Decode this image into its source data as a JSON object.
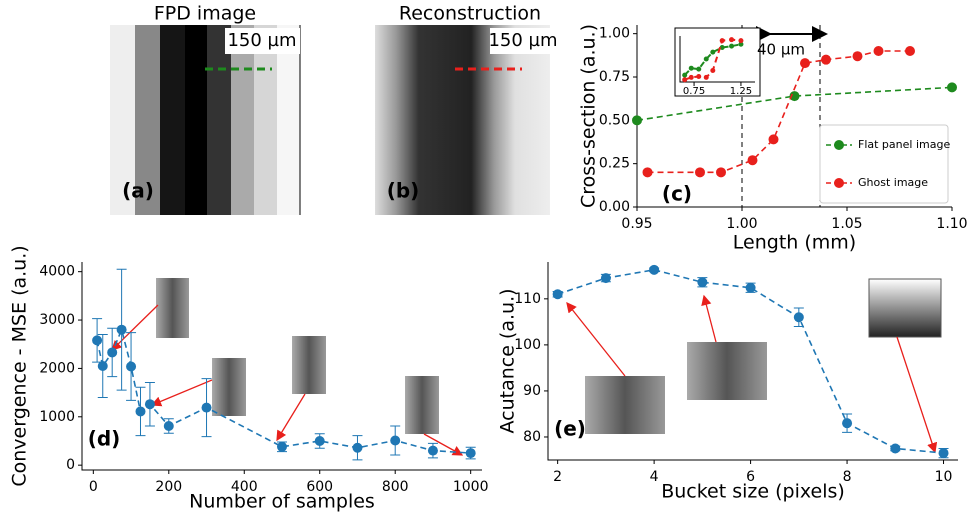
{
  "images": [
    {
      "title": "FPD image",
      "scale_label": "150 µm",
      "panel_label": "(a)"
    },
    {
      "title": "Reconstruction",
      "scale_label": "150 µm",
      "panel_label": "(b)"
    }
  ],
  "chart_data": [
    {
      "type": "line",
      "panel_label": "(c)",
      "x_label": "Length (mm)",
      "y_label": "Cross-section (a.u.)",
      "xlim": [
        0.95,
        1.1
      ],
      "ylim": [
        0,
        1.05
      ],
      "xticks": [
        0.95,
        {
          "value": 1.0,
          "label": "1.00"
        },
        1.05,
        {
          "value": 1.1,
          "label": "1.10"
        }
      ],
      "yticks": [
        {
          "value": 0,
          "label": "0.00"
        },
        0.25,
        {
          "value": 0.5,
          "label": "0.50"
        },
        0.75,
        {
          "value": 1,
          "label": "1.00"
        }
      ],
      "legend": "lower right",
      "annotation": "40 µm",
      "series": [
        {
          "name": "Flat panel image",
          "color": "#1e8a1e",
          "x": [
            0.95,
            1.025,
            1.1
          ],
          "values": [
            0.5,
            0.64,
            0.69
          ]
        },
        {
          "name": "Ghost image",
          "color": "#e8201c",
          "x": [
            0.955,
            0.98,
            0.99,
            1.005,
            1.015,
            1.03,
            1.04,
            1.055,
            1.065,
            1.08
          ],
          "values": [
            0.2,
            0.2,
            0.2,
            0.27,
            0.39,
            0.83,
            0.85,
            0.87,
            0.9,
            0.9
          ]
        }
      ]
    },
    {
      "type": "line",
      "xlim": [
        0.6,
        1.4
      ],
      "ylim": [
        0,
        1
      ],
      "xticks": [
        0.75,
        1.25
      ],
      "series": [
        {
          "color": "#1e8a1e",
          "x": [
            0.65,
            0.72,
            0.8,
            0.88,
            0.95,
            1.05,
            1.15,
            1.25
          ],
          "values": [
            0.15,
            0.3,
            0.28,
            0.5,
            0.65,
            0.75,
            0.78,
            0.82
          ]
        },
        {
          "color": "#e8201c",
          "x": [
            0.65,
            0.72,
            0.8,
            0.88,
            0.95,
            1.05,
            1.15,
            1.25
          ],
          "values": [
            0.05,
            0.1,
            0.12,
            0.1,
            0.25,
            0.9,
            0.92,
            0.9
          ]
        }
      ]
    },
    {
      "type": "line",
      "panel_label": "(d)",
      "x_label": "Number of samples",
      "y_label": "Convergence - MSE (a.u.)",
      "xlim": [
        -30,
        1030
      ],
      "ylim": [
        -100,
        4200
      ],
      "xticks": [
        0,
        200,
        400,
        600,
        800,
        1000
      ],
      "yticks": [
        0,
        1000,
        2000,
        3000,
        4000
      ],
      "series": [
        {
          "color": "#1f77b4",
          "x": [
            10,
            25,
            50,
            75,
            100,
            125,
            150,
            200,
            300,
            500,
            600,
            700,
            800,
            900,
            1000
          ],
          "values": [
            2580,
            2050,
            2330,
            2800,
            2040,
            1110,
            1260,
            810,
            1190,
            380,
            500,
            360,
            510,
            300,
            250
          ],
          "errors": [
            450,
            650,
            500,
            1250,
            700,
            500,
            450,
            150,
            600,
            100,
            150,
            250,
            300,
            150,
            120
          ]
        }
      ]
    },
    {
      "type": "line",
      "panel_label": "(e)",
      "x_label": "Bucket size (pixels)",
      "y_label": "Acutance (a.u.)",
      "xlim": [
        1.8,
        10.3
      ],
      "ylim": [
        75,
        118
      ],
      "xticks": [
        2,
        4,
        6,
        8,
        10
      ],
      "yticks": [
        80,
        90,
        100,
        110
      ],
      "series": [
        {
          "color": "#1f77b4",
          "x": [
            2,
            3,
            4,
            5,
            6,
            7,
            8,
            9,
            10
          ],
          "values": [
            111,
            114.5,
            116.3,
            113.6,
            112.4,
            106,
            83,
            77.5,
            76.5
          ],
          "errors": [
            0.6,
            0.8,
            0.4,
            1,
            1,
            2,
            2,
            0.5,
            1
          ]
        }
      ]
    }
  ]
}
